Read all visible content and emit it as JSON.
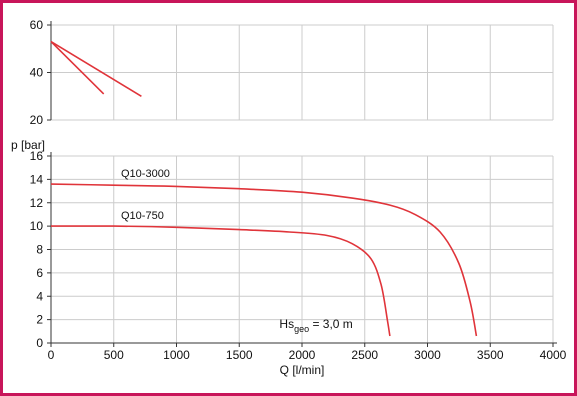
{
  "chart_data": [
    {
      "type": "line",
      "ylim": [
        20,
        60
      ],
      "yticks": [
        "20",
        "40",
        "60"
      ],
      "series": [
        {
          "x": [
            0,
            420
          ],
          "values": [
            53,
            31
          ]
        },
        {
          "x": [
            0,
            720
          ],
          "values": [
            53,
            30
          ]
        }
      ]
    },
    {
      "type": "line",
      "xlabel": "Q [l/min]",
      "ylabel": "p [bar]",
      "xlim": [
        0,
        4000
      ],
      "ylim": [
        0,
        16
      ],
      "xticks": [
        "0",
        "500",
        "1000",
        "1500",
        "2000",
        "2500",
        "3000",
        "3500",
        "4000"
      ],
      "yticks": [
        "0",
        "2",
        "4",
        "6",
        "8",
        "10",
        "12",
        "14",
        "16"
      ],
      "grid": true,
      "series": [
        {
          "name": "Q10-3000",
          "x": [
            0,
            500,
            1000,
            1500,
            2000,
            2400,
            2700,
            2900,
            3100,
            3250,
            3340,
            3390
          ],
          "values": [
            13.6,
            13.5,
            13.4,
            13.2,
            12.9,
            12.4,
            11.8,
            11.0,
            9.5,
            6.8,
            3.5,
            0.6
          ]
        },
        {
          "name": "Q10-750",
          "x": [
            0,
            500,
            1000,
            1500,
            1900,
            2200,
            2400,
            2550,
            2630,
            2680,
            2700
          ],
          "values": [
            10.0,
            10.0,
            9.9,
            9.7,
            9.5,
            9.2,
            8.5,
            7.2,
            5.0,
            2.0,
            0.6
          ]
        }
      ],
      "annotations": [
        {
          "main": "Hs",
          "sub": "geo",
          "rest": " = 3,0 m"
        }
      ]
    }
  ],
  "style": {
    "frame_color": "#c8155a",
    "line_color": "#e0343a",
    "grid_color": "#cccccc",
    "axis_color": "#333333"
  }
}
